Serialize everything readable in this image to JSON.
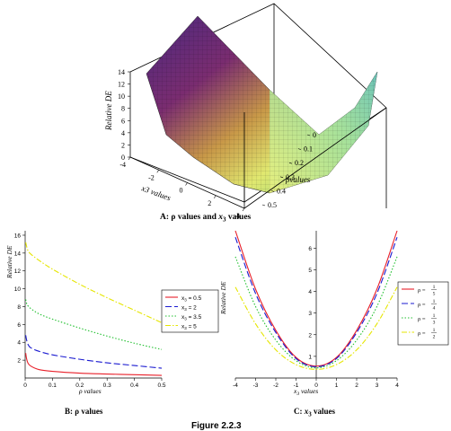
{
  "figure_caption": "Figure 2.2.3",
  "chart_data": [
    {
      "id": "A",
      "type": "surface",
      "caption": "A: ρ values and x3 values",
      "caption_parts": {
        "prefix": "A: ρ values and ",
        "var": "x",
        "sub": "3",
        "suffix": " values"
      },
      "xlabel": "x3 values",
      "ylabel": "ρvalues",
      "zlabel": "Relative DE",
      "x_ticks": [
        "-4",
        "-2",
        "0",
        "2",
        "4"
      ],
      "y_ticks": [
        "0",
        "0.1",
        "0.2",
        "0.3",
        "0.4",
        "0.5"
      ],
      "z_ticks": [
        "0",
        "2",
        "4",
        "6",
        "8",
        "10",
        "12",
        "14"
      ],
      "xlim": [
        -4,
        4
      ],
      "ylim": [
        0,
        0.5
      ],
      "zlim": [
        0,
        14
      ],
      "colors": [
        "#3a1a6e",
        "#6a2a8a",
        "#8a3a5a",
        "#c8a040",
        "#d8e060",
        "#70c070",
        "#a8e0a8"
      ]
    },
    {
      "id": "B",
      "type": "line",
      "caption": "B: ρ values",
      "xlabel": "ρ values",
      "ylabel": "Relative DE",
      "xlim": [
        0,
        0.5
      ],
      "ylim": [
        0,
        16.5
      ],
      "x_ticks": [
        "0",
        "0.1",
        "0.2",
        "0.3",
        "0.4",
        "0.5"
      ],
      "y_ticks": [
        "2",
        "4",
        "6",
        "8",
        "10",
        "12",
        "14",
        "16"
      ],
      "legend_position": "right",
      "series": [
        {
          "name": "x3 = 0.5",
          "color": "#e8202a",
          "dash": "solid",
          "x": [
            0.002,
            0.005,
            0.01,
            0.02,
            0.05,
            0.1,
            0.2,
            0.3,
            0.4,
            0.5
          ],
          "y": [
            2.8,
            2.2,
            1.7,
            1.35,
            0.95,
            0.75,
            0.55,
            0.45,
            0.37,
            0.3
          ]
        },
        {
          "name": "x3 = 2",
          "color": "#1a1ad0",
          "dash": "longdash",
          "x": [
            0.002,
            0.005,
            0.01,
            0.02,
            0.05,
            0.1,
            0.2,
            0.3,
            0.4,
            0.5
          ],
          "y": [
            4.8,
            4.3,
            3.8,
            3.4,
            3.0,
            2.6,
            2.1,
            1.7,
            1.4,
            1.1
          ]
        },
        {
          "name": "x3 = 3.5",
          "color": "#22c030",
          "dash": "dotted",
          "x": [
            0.002,
            0.005,
            0.01,
            0.02,
            0.05,
            0.1,
            0.2,
            0.3,
            0.4,
            0.5
          ],
          "y": [
            8.8,
            8.4,
            8.1,
            7.8,
            7.2,
            6.6,
            5.6,
            4.7,
            3.9,
            3.2
          ]
        },
        {
          "name": "x3 = 5",
          "color": "#e6e600",
          "dash": "dashdot",
          "x": [
            0.002,
            0.005,
            0.01,
            0.02,
            0.05,
            0.1,
            0.2,
            0.3,
            0.4,
            0.5
          ],
          "y": [
            15.2,
            14.8,
            14.3,
            13.9,
            13.2,
            12.2,
            10.5,
            9.0,
            7.6,
            6.2
          ]
        }
      ]
    },
    {
      "id": "C",
      "type": "line",
      "caption": "C: x3 values",
      "xlabel": "x3 values",
      "ylabel": "Relative DE",
      "xlim": [
        -4,
        4
      ],
      "ylim": [
        0,
        6.8
      ],
      "x_ticks": [
        "-4",
        "-3",
        "-2",
        "-1",
        "0",
        "1",
        "2",
        "3",
        "4"
      ],
      "y_ticks": [
        "1",
        "2",
        "3",
        "4",
        "5",
        "6"
      ],
      "legend_position": "right",
      "series": [
        {
          "name": "ρ = 1/5",
          "num": "1",
          "den": "5",
          "color": "#e8202a",
          "dash": "solid",
          "x": [
            -4,
            -3,
            -2,
            -1,
            0,
            1,
            2,
            3,
            4
          ],
          "y": [
            6.8,
            4.1,
            2.2,
            0.95,
            0.55,
            0.95,
            2.2,
            4.1,
            6.8
          ]
        },
        {
          "name": "ρ = 1/4",
          "num": "1",
          "den": "4",
          "color": "#1a1ad0",
          "dash": "longdash",
          "x": [
            -4,
            -3,
            -2,
            -1,
            0,
            1,
            2,
            3,
            4
          ],
          "y": [
            6.5,
            3.9,
            2.1,
            0.9,
            0.52,
            0.9,
            2.1,
            3.9,
            6.5
          ]
        },
        {
          "name": "ρ = 1/3",
          "num": "1",
          "den": "3",
          "color": "#22c030",
          "dash": "dotted",
          "x": [
            -4,
            -3,
            -2,
            -1,
            0,
            1,
            2,
            3,
            4
          ],
          "y": [
            5.6,
            3.3,
            1.75,
            0.8,
            0.47,
            0.8,
            1.75,
            3.3,
            5.6
          ]
        },
        {
          "name": "ρ = 1/2",
          "num": "1",
          "den": "2",
          "color": "#e6e600",
          "dash": "dashdot",
          "x": [
            -4,
            -3,
            -2,
            -1,
            0,
            1,
            2,
            3,
            4
          ],
          "y": [
            4.2,
            2.5,
            1.3,
            0.62,
            0.4,
            0.62,
            1.3,
            2.5,
            4.2
          ]
        }
      ]
    }
  ]
}
